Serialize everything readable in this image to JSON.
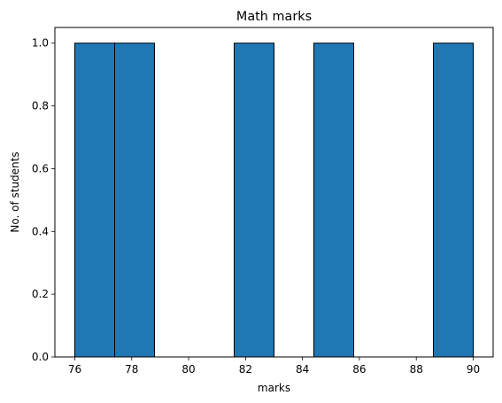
{
  "chart_data": {
    "type": "bar",
    "title": "Math marks",
    "xlabel": "marks",
    "ylabel": "No. of students",
    "xlim": [
      75.3,
      90.7
    ],
    "ylim": [
      0,
      1.05
    ],
    "bins": [
      {
        "start": 76.0,
        "end": 77.4,
        "count": 1
      },
      {
        "start": 77.4,
        "end": 78.8,
        "count": 1
      },
      {
        "start": 78.8,
        "end": 80.2,
        "count": 0
      },
      {
        "start": 80.2,
        "end": 81.6,
        "count": 0
      },
      {
        "start": 81.6,
        "end": 83.0,
        "count": 1
      },
      {
        "start": 83.0,
        "end": 84.4,
        "count": 0
      },
      {
        "start": 84.4,
        "end": 85.8,
        "count": 1
      },
      {
        "start": 85.8,
        "end": 87.2,
        "count": 0
      },
      {
        "start": 87.2,
        "end": 88.6,
        "count": 0
      },
      {
        "start": 88.6,
        "end": 90.0,
        "count": 1
      }
    ],
    "x_ticks": [
      76,
      78,
      80,
      82,
      84,
      86,
      88,
      90
    ],
    "y_ticks": [
      "0.0",
      "0.2",
      "0.4",
      "0.6",
      "0.8",
      "1.0"
    ],
    "bar_color": "#1f77b4",
    "edge_color": "#000000",
    "grid": false
  }
}
